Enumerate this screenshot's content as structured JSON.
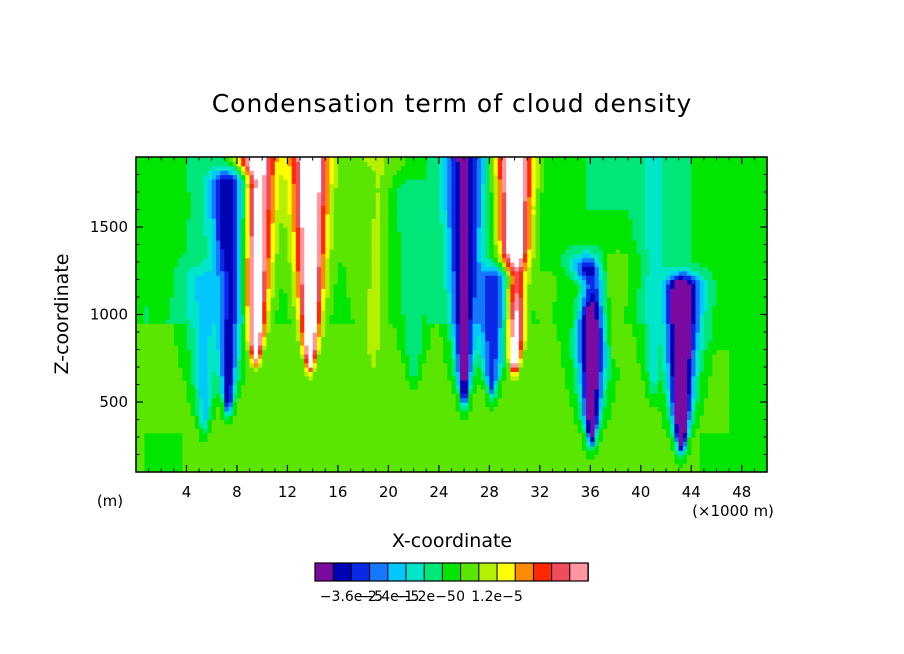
{
  "chart_data": {
    "type": "heatmap",
    "title": "Condensation term of cloud density",
    "xlabel": "X-coordinate",
    "ylabel": "Z-coordinate",
    "x_unit_left": "(m)",
    "x_unit_right": "(×1000 m)",
    "xlim": [
      0,
      50
    ],
    "ylim": [
      100,
      1900
    ],
    "x_ticks": [
      4,
      8,
      12,
      16,
      20,
      24,
      28,
      32,
      36,
      40,
      44,
      48
    ],
    "x_tick_labels": [
      "4",
      "8",
      "12",
      "16",
      "20",
      "24",
      "28",
      "32",
      "36",
      "40",
      "44",
      "48"
    ],
    "y_ticks": [
      500,
      1000,
      1500
    ],
    "y_tick_labels": [
      "500",
      "1000",
      "1500"
    ],
    "colorbar": {
      "levels_min": -4.2e-05,
      "level_step": 6e-06,
      "colors": [
        "#7a0aa0",
        "#0000b4",
        "#0a28e6",
        "#1478ff",
        "#00c8ff",
        "#00e6c8",
        "#00e678",
        "#00e600",
        "#5ae600",
        "#b4f000",
        "#ffff00",
        "#ff8c00",
        "#ff2800",
        "#f04b5a",
        "#ff96a0"
      ],
      "tick_labels": [
        "−3.6e−5",
        "−2.4e−5",
        "−1.2e−5",
        "0",
        "1.2e−5"
      ]
    },
    "out_of_range_color": "#ffffff",
    "features": [
      {
        "x": 9.5,
        "top": 1900,
        "bottom": 780,
        "value": 6e-05
      },
      {
        "x": 13.8,
        "top": 1900,
        "bottom": 740,
        "value": 6e-05
      },
      {
        "x": 18.8,
        "top": 1900,
        "bottom": 760,
        "value": 1.6e-05
      },
      {
        "x": 30.0,
        "top": 1900,
        "bottom": 730,
        "value": 6e-05
      },
      {
        "x": 17.8,
        "top": 1800,
        "bottom": 950,
        "value": 9e-06
      },
      {
        "x": 2.0,
        "top": 1750,
        "bottom": 1050,
        "value": 4e-06
      },
      {
        "x": 26.0,
        "top": 1900,
        "bottom": 550,
        "value": -4e-05
      },
      {
        "x": 7.3,
        "top": 1750,
        "bottom": 500,
        "value": -3.4e-05
      },
      {
        "x": 28.2,
        "top": 1200,
        "bottom": 600,
        "value": -2.8e-05
      },
      {
        "x": 36.1,
        "top": 1250,
        "bottom": 320,
        "value": -4.5e-05
      },
      {
        "x": 43.2,
        "top": 1150,
        "bottom": 280,
        "value": -5e-05
      },
      {
        "x": 5.4,
        "top": 1200,
        "bottom": 400,
        "value": -1.4e-05
      },
      {
        "x": 22.0,
        "top": 1700,
        "bottom": 700,
        "value": -6e-06
      },
      {
        "x": 41.0,
        "top": 1900,
        "bottom": 600,
        "value": -8e-06
      },
      {
        "x": 38.0,
        "top": 1300,
        "bottom": 800,
        "value": 1e-05
      },
      {
        "x": 34.3,
        "top": 1150,
        "bottom": 950,
        "value": 3e-06
      },
      {
        "x": 32.4,
        "top": 1200,
        "bottom": 900,
        "value": 8e-06
      }
    ]
  }
}
